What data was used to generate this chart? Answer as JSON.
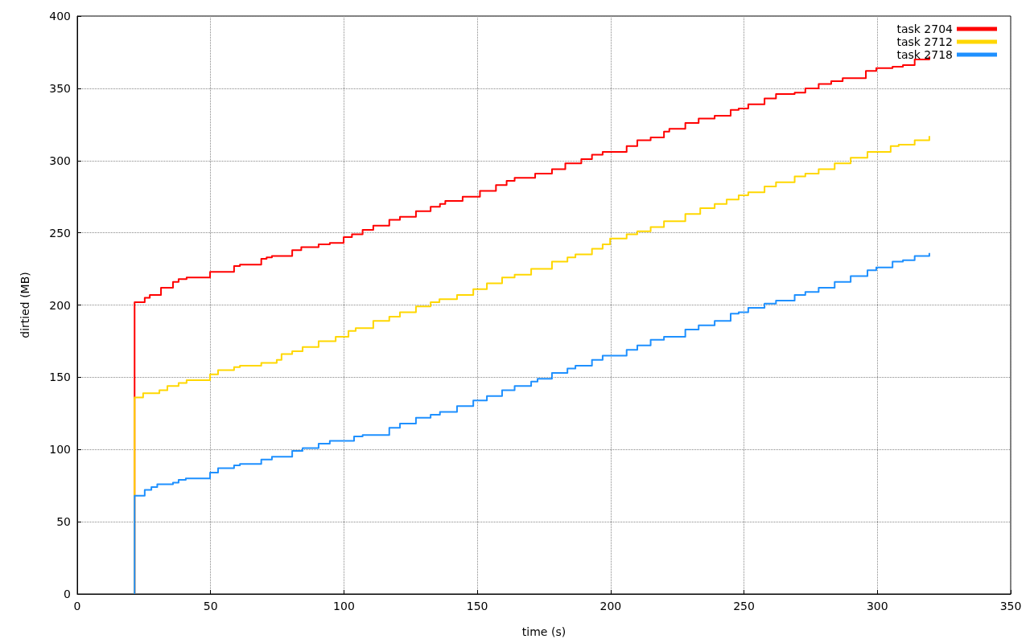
{
  "chart_data": {
    "type": "step",
    "xlabel": "time (s)",
    "ylabel": "dirtied (MB)",
    "xlim": [
      0,
      350
    ],
    "xticks": [
      0,
      50,
      100,
      150,
      200,
      250,
      300,
      350
    ],
    "ylim": [
      0,
      400
    ],
    "yticks": [
      0,
      50,
      100,
      150,
      200,
      250,
      300,
      350,
      400
    ],
    "grid": true,
    "legend": "top right",
    "marker": "none",
    "line_style": "solid",
    "series": [
      {
        "name": "task 2704",
        "color": "#ff0000",
        "x": [
          21.5,
          21.5,
          25.3,
          27.2,
          31.4,
          35.9,
          38,
          41,
          49.8,
          58.8,
          61,
          69,
          71,
          73,
          80.6,
          84,
          90.5,
          94.7,
          99.9,
          103,
          107,
          111,
          117,
          121,
          127,
          132.5,
          136,
          138,
          144.5,
          151,
          157,
          161,
          164,
          171.7,
          178,
          183,
          189,
          193,
          197,
          206,
          210,
          215,
          220,
          222,
          228,
          233,
          239,
          245,
          248,
          251.6,
          257.7,
          262,
          269,
          273,
          278,
          282.7,
          287,
          295.7,
          299.6,
          305.7,
          309.6,
          314,
          319.5
        ],
        "values": [
          0,
          202,
          205,
          207,
          212,
          216,
          218,
          219,
          223,
          227,
          228,
          232,
          233,
          234,
          238,
          240,
          242,
          243,
          247,
          249,
          252,
          255,
          259,
          261,
          265,
          268,
          270,
          272,
          275,
          279,
          283,
          286,
          288,
          291,
          294,
          298,
          301,
          304,
          306,
          310,
          314,
          316,
          320,
          322,
          326,
          329,
          331,
          335,
          336,
          339,
          343,
          346,
          347,
          350,
          353,
          355,
          357,
          362,
          364,
          365,
          366,
          370,
          372
        ]
      },
      {
        "name": "task 2712",
        "color": "#ffd700",
        "x": [
          21.5,
          21.5,
          24.7,
          30.8,
          33.8,
          38,
          41,
          49.8,
          52.8,
          58.8,
          61,
          69,
          74.8,
          76.6,
          80.6,
          84.5,
          90.5,
          96.9,
          101.7,
          104.4,
          111,
          117,
          121,
          127,
          132.5,
          135.8,
          142.4,
          148.5,
          153.6,
          159.3,
          164,
          170.2,
          178,
          183.8,
          186.8,
          193,
          197,
          199.8,
          206,
          210,
          215,
          220,
          228,
          233.6,
          239,
          243.5,
          248,
          251.6,
          257.7,
          262,
          269,
          273,
          278,
          284,
          290,
          296.3,
          305,
          308,
          314,
          319.5
        ],
        "values": [
          0,
          136,
          139,
          141,
          144,
          146,
          148,
          152,
          155,
          157,
          158,
          160,
          162,
          166,
          168,
          171,
          175,
          178,
          182,
          184,
          189,
          192,
          195,
          199,
          202,
          204,
          207,
          211,
          215,
          219,
          221,
          225,
          230,
          233,
          235,
          239,
          242,
          246,
          249,
          251,
          254,
          258,
          263,
          267,
          270,
          273,
          276,
          278,
          282,
          285,
          289,
          291,
          294,
          298,
          302,
          306,
          310,
          311,
          314,
          317
        ]
      },
      {
        "name": "task 2718",
        "color": "#1e90ff",
        "x": [
          21.5,
          21.5,
          25.3,
          27.8,
          30,
          35.9,
          38,
          40.7,
          49.8,
          52.8,
          58.8,
          61,
          69,
          73,
          80.6,
          84.5,
          90.5,
          94.7,
          103.8,
          107,
          117,
          121,
          127,
          132.5,
          136,
          142.4,
          148.5,
          153.6,
          159.3,
          164,
          170.2,
          172.6,
          178,
          183.8,
          186.8,
          193,
          197,
          206,
          210,
          215,
          220,
          228,
          233,
          239,
          245,
          248,
          251.6,
          257.7,
          262,
          269,
          273,
          278,
          284,
          290,
          296.3,
          299.6,
          305.7,
          309.6,
          314,
          319.5
        ],
        "values": [
          0,
          68,
          72,
          74,
          76,
          77,
          79,
          80,
          84,
          87,
          89,
          90,
          93,
          95,
          99,
          101,
          104,
          106,
          109,
          110,
          115,
          118,
          122,
          124,
          126,
          130,
          134,
          137,
          141,
          144,
          147,
          149,
          153,
          156,
          158,
          162,
          165,
          169,
          172,
          176,
          178,
          183,
          186,
          189,
          194,
          195,
          198,
          201,
          203,
          207,
          209,
          212,
          216,
          220,
          224,
          226,
          230,
          231,
          234,
          236
        ]
      }
    ]
  }
}
